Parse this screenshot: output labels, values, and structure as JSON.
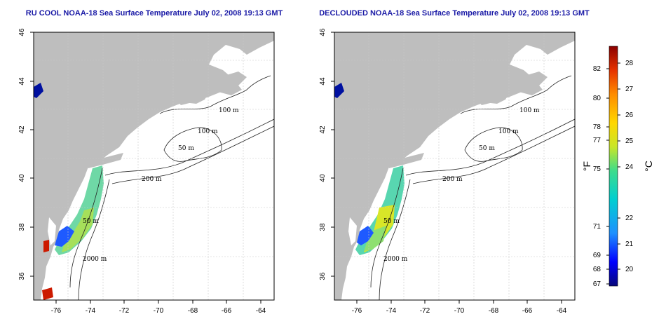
{
  "panels": [
    {
      "title": "RU COOL NOAA-18 Sea Surface Temperature July 02, 2008 19:13 GMT",
      "x_ticks": [
        "-76",
        "-74",
        "-72",
        "-70",
        "-68",
        "-66",
        "-64"
      ],
      "y_ticks": [
        "36",
        "38",
        "40",
        "42",
        "44",
        "46"
      ],
      "contour_labels": [
        "100 m",
        "100 m",
        "50 m",
        "200 m",
        "50 m",
        "2000 m"
      ]
    },
    {
      "title": "DECLOUDED NOAA-18 Sea Surface Temperature July 02, 2008 19:13 GMT",
      "x_ticks": [
        "-76",
        "-74",
        "-72",
        "-70",
        "-68",
        "-66",
        "-64"
      ],
      "y_ticks": [
        "36",
        "38",
        "40",
        "42",
        "44",
        "46"
      ],
      "contour_labels": [
        "100 m",
        "100 m",
        "50 m",
        "200 m",
        "50 m",
        "2000 m"
      ]
    }
  ],
  "colorbar": {
    "fahrenheit_label": "°F",
    "celsius_label": "°C",
    "fahrenheit_ticks": [
      "82",
      "80",
      "78",
      "77",
      "75",
      "71",
      "69",
      "68",
      "67"
    ],
    "celsius_ticks": [
      "28",
      "27",
      "26",
      "25",
      "24",
      "22",
      "21",
      "20"
    ],
    "celsius_range": [
      19.5,
      28.6
    ],
    "colors": [
      "#08087a",
      "#0000ff",
      "#1e90ff",
      "#00ced1",
      "#3cdc8c",
      "#c8e628",
      "#ffd700",
      "#ff8c00",
      "#e63200",
      "#8b0000"
    ]
  },
  "colors": {
    "land": "#bebebe",
    "ocean": "#ffffff",
    "title": "#1a1aa6",
    "grid": "#c8c8c8"
  }
}
